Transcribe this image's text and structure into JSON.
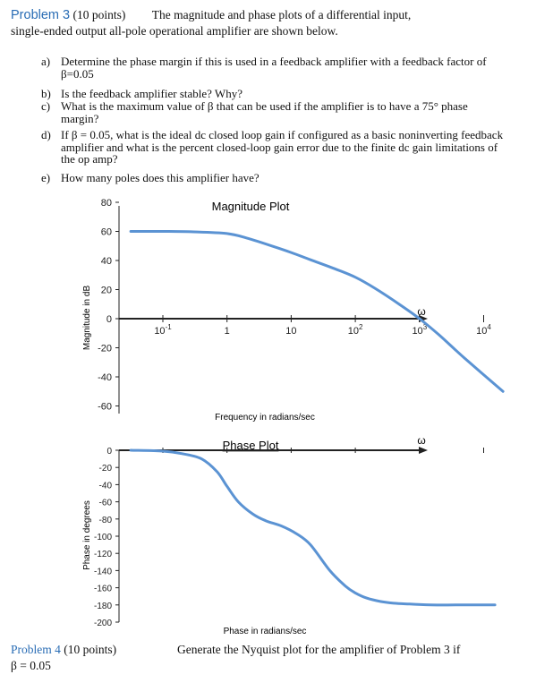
{
  "problem3": {
    "label": "Problem 3",
    "points": "(10 points)",
    "intro_line1": "The magnitude and phase plots of a differential input,",
    "intro_line2": "single-ended output all-pole operational amplifier are shown below."
  },
  "questions": [
    {
      "letter": "a)",
      "text": "Determine the phase margin if this is used in a feedback amplifier with a feedback factor of β=0.05"
    },
    {
      "letter": "b)",
      "text": "Is the feedback amplifier stable? Why?"
    },
    {
      "letter": "c)",
      "text": "What is the maximum value of β that can be used if the amplifier is to have a 75° phase margin?"
    },
    {
      "letter": "d)",
      "text": "If β = 0.05, what is the ideal dc closed loop gain if configured as a basic noninverting feedback amplifier and what is the percent closed-loop gain error due to the finite dc gain limitations of the op amp?"
    },
    {
      "letter": "e)",
      "text": "How many poles does this amplifier have?"
    }
  ],
  "chart_data": [
    {
      "type": "line",
      "title": "Magnitude Plot",
      "ylabel": "Magnitude in dB",
      "xlabel": "Frequency in radians/sec",
      "axis_symbol": "ω",
      "x_scale": "log",
      "x_ticks": [
        "10",
        "1",
        "10",
        "10",
        "10",
        "10"
      ],
      "x_tick_exponents": [
        "-1",
        "",
        "",
        "2",
        "3",
        "4"
      ],
      "x_tick_values": [
        0.1,
        1,
        10,
        100,
        1000,
        10000
      ],
      "y_ticks": [
        "80",
        "60",
        "40",
        "20",
        "0",
        "-20",
        "-40",
        "-60"
      ],
      "ylim": [
        -60,
        80
      ],
      "series": [
        {
          "color": "#5b93d3",
          "x": [
            0.0316,
            0.1,
            0.3,
            1,
            2,
            5,
            10,
            20,
            50,
            100,
            200,
            500,
            1000,
            2000,
            5000,
            20000
          ],
          "y": [
            60,
            60,
            59.7,
            58.5,
            55.5,
            50,
            45.5,
            40.5,
            34,
            28.5,
            21,
            9.5,
            0,
            -11,
            -27,
            -50
          ]
        }
      ]
    },
    {
      "type": "line",
      "title": "Phase Plot",
      "ylabel": "Phase in degrees",
      "xlabel": "Phase in radians/sec",
      "axis_symbol": "ω",
      "x_scale": "log",
      "y_ticks": [
        "0",
        "-20",
        "-40",
        "-60",
        "-80",
        "-100",
        "-120",
        "-140",
        "-160",
        "-180",
        "-200"
      ],
      "ylim": [
        -200,
        0
      ],
      "series": [
        {
          "color": "#5b93d3",
          "x": [
            0.0316,
            0.1,
            0.2,
            0.4,
            0.7,
            1,
            1.5,
            2.5,
            4,
            7,
            12,
            20,
            40,
            70,
            100,
            150,
            250,
            400,
            700,
            1500,
            4000,
            15000
          ],
          "y": [
            0,
            -1,
            -4,
            -10,
            -25,
            -42,
            -60,
            -74,
            -82,
            -88,
            -97,
            -110,
            -140,
            -158,
            -166,
            -172,
            -176,
            -178,
            -179,
            -180,
            -180,
            -180
          ]
        }
      ]
    }
  ],
  "footer": {
    "left_label": "Problem 4",
    "left_points": "(10 points)",
    "left_line2": "β = 0.05",
    "right_text": "Generate the Nyquist plot for the amplifier of Problem 3 if"
  }
}
